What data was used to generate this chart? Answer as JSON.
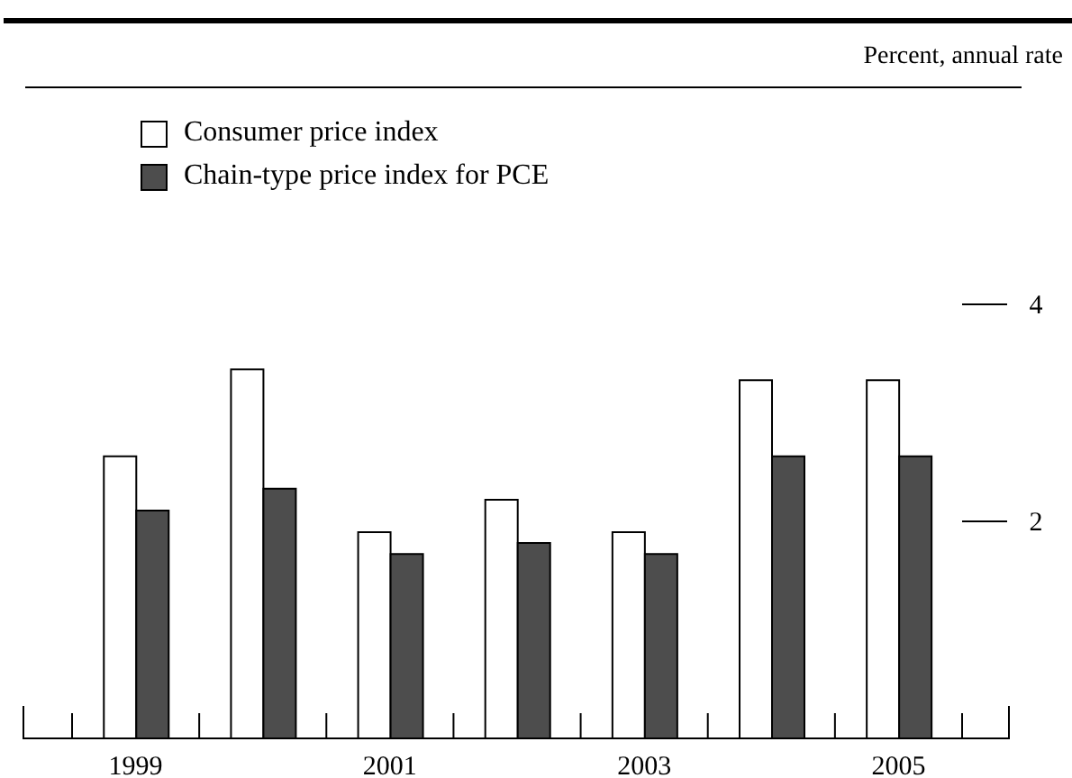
{
  "chart_data": {
    "type": "bar",
    "annotations": [
      "Percent, annual rate"
    ],
    "categories": [
      "1999",
      null,
      "2001",
      null,
      "2003",
      null,
      "2005"
    ],
    "series": [
      {
        "name": "Consumer price index",
        "color": "#ffffff",
        "values": [
          2.6,
          3.4,
          1.9,
          2.2,
          1.9,
          3.3,
          3.3
        ]
      },
      {
        "name": "Chain-type price index for PCE",
        "color": "#4d4d4d",
        "values": [
          2.1,
          2.3,
          1.7,
          1.8,
          1.7,
          2.6,
          2.6
        ]
      }
    ],
    "ylim": [
      0,
      4
    ],
    "yticks": [
      2,
      4
    ],
    "grid": false,
    "legend": "top left"
  }
}
